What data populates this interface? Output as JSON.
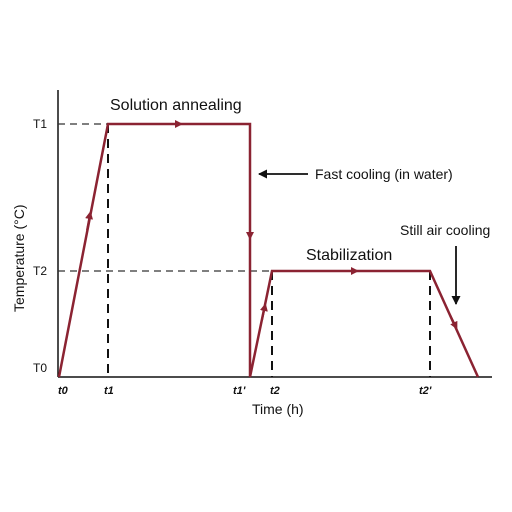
{
  "axes": {
    "y_label": "Temperature (°C)",
    "x_label": "Time (h)",
    "y_ticks": [
      "T1",
      "T2",
      "T0"
    ],
    "x_ticks": [
      "t0",
      "t1",
      "t1'",
      "t2",
      "t2'"
    ]
  },
  "annotations": {
    "solution_annealing": "Solution annealing",
    "fast_cooling": "Fast cooling (in water)",
    "stabilization": "Stabilization",
    "still_air_cooling": "Still air cooling"
  },
  "colors": {
    "profile": "#8b2332",
    "axis": "#111111",
    "guide": "#222222"
  }
}
